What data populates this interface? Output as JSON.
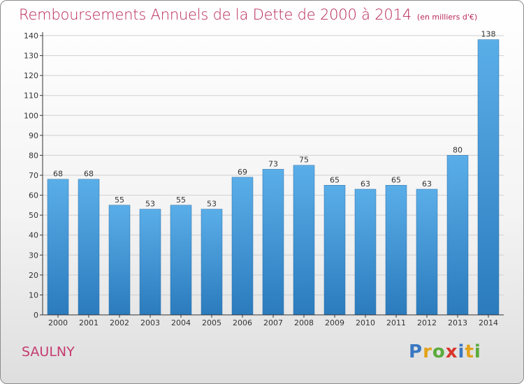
{
  "title": "Remboursements Annuels de la Dette de 2000 à 2014",
  "unit_note": "(en milliers d'€)",
  "commune": "SAULNY",
  "logo": {
    "letters": [
      "P",
      "r",
      "o",
      "x",
      "i",
      "t",
      "i"
    ]
  },
  "colors": {
    "title": "#b8285a",
    "commune": "#c43b6e",
    "bar_top": "#5aaee8",
    "bar_bottom": "#2b7bbd",
    "grid": "#cfcfcf",
    "axis": "#333333"
  },
  "chart_data": {
    "type": "bar",
    "title": "Remboursements Annuels de la Dette de 2000 à 2014",
    "subtitle": "(en milliers d'€)",
    "categories": [
      "2000",
      "2001",
      "2002",
      "2003",
      "2004",
      "2005",
      "2006",
      "2007",
      "2008",
      "2009",
      "2010",
      "2011",
      "2012",
      "2013",
      "2014"
    ],
    "values": [
      68,
      68,
      55,
      53,
      55,
      53,
      69,
      73,
      75,
      65,
      63,
      65,
      63,
      80,
      138
    ],
    "ylim": [
      0,
      140
    ],
    "yticks": [
      0,
      10,
      20,
      30,
      40,
      50,
      60,
      70,
      80,
      90,
      100,
      110,
      120,
      130,
      140
    ],
    "grid": true,
    "legend": false
  }
}
